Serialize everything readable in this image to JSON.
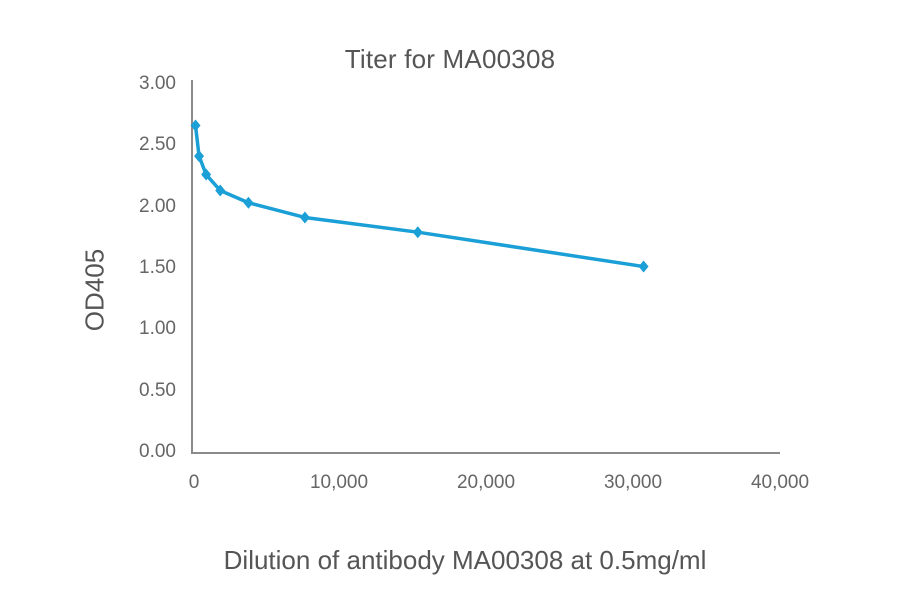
{
  "chart_data": {
    "type": "line",
    "title": "Titer for MA00308",
    "xlabel": "Dilution of antibody MA00308 at 0.5mg/ml",
    "ylabel": "OD405",
    "xlim": [
      0,
      40000
    ],
    "ylim": [
      0,
      3.0
    ],
    "x_ticks": [
      "0",
      "10,000",
      "20,000",
      "30,000",
      "40,000"
    ],
    "y_ticks": [
      "0.00",
      "0.50",
      "1.00",
      "1.50",
      "2.00",
      "2.50",
      "3.00"
    ],
    "grid": false,
    "legend": null,
    "series": [
      {
        "name": "MA00308",
        "color": "#1a9fd6",
        "marker": "diamond",
        "x": [
          240,
          480,
          960,
          1920,
          3840,
          7680,
          15360,
          30720
        ],
        "values": [
          2.67,
          2.42,
          2.27,
          2.14,
          2.04,
          1.92,
          1.8,
          1.52
        ]
      }
    ]
  },
  "colors": {
    "axis": "#8a8a8a",
    "line": "#1a9fd6",
    "text": "#5a5a5a"
  }
}
